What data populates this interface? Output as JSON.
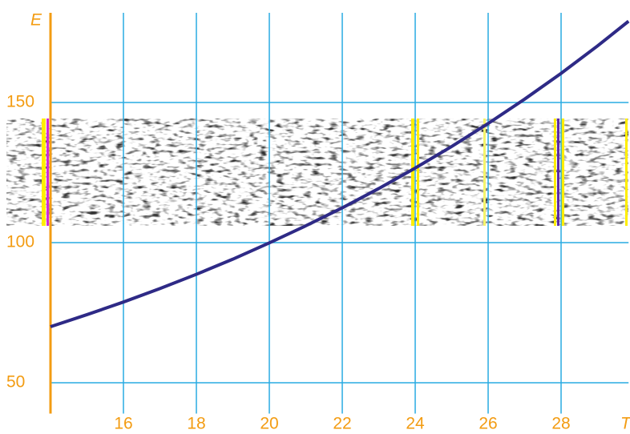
{
  "chart_data": {
    "type": "line",
    "x_label": "T",
    "y_label": "E",
    "x": [
      14,
      15,
      16,
      17,
      18,
      19,
      20,
      21,
      22,
      23,
      24,
      25,
      26,
      27,
      28,
      29,
      29.85
    ],
    "values": [
      70,
      74.3,
      78.8,
      83.6,
      88.7,
      94.1,
      99.9,
      106.0,
      112.4,
      119.3,
      126.6,
      134.3,
      142.5,
      151.2,
      160.4,
      170.2,
      179
    ],
    "color": "#2e2a86",
    "xlim": [
      14,
      29.85
    ],
    "xticks": [
      16,
      18,
      20,
      22,
      24,
      26,
      28
    ],
    "ylim": [
      39,
      182
    ],
    "yticks": [
      50,
      100,
      150
    ],
    "grid": true,
    "grid_color": "#29abe2",
    "axis_color": "#f39c12"
  }
}
